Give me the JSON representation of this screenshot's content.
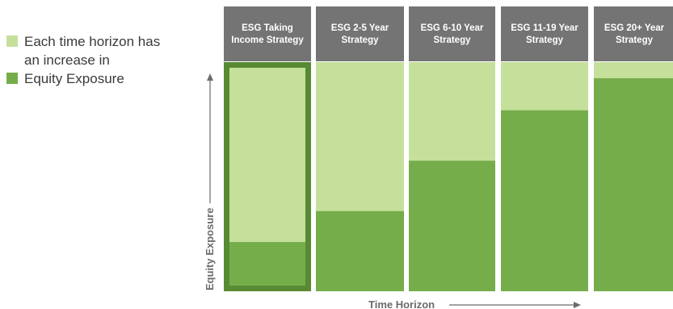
{
  "legend": {
    "items": [
      {
        "lines": [
          "Each time horizon has",
          "an increase in"
        ],
        "color": "#c5e09b"
      },
      {
        "lines": [
          "Equity Exposure"
        ],
        "color": "#76ad4b"
      }
    ]
  },
  "colors": {
    "header": "#747474",
    "header_text": "#ffffff",
    "light": "#c5e09b",
    "dark": "#76ad4b",
    "highlight_border": "#578a33",
    "axis": "#6b6b6b"
  },
  "chart_data": {
    "type": "bar",
    "stacked": true,
    "categories": [
      [
        "ESG Taking",
        "Income Strategy"
      ],
      [
        "ESG 2-5 Year",
        "Strategy"
      ],
      [
        "ESG 6-10 Year",
        "Strategy"
      ],
      [
        "ESG 11-19 Year",
        "Strategy"
      ],
      [
        "ESG 20+ Year",
        "Strategy"
      ]
    ],
    "series": [
      {
        "values": [
          20,
          35,
          57,
          79,
          93
        ]
      },
      {
        "values": [
          80,
          65,
          43,
          21,
          7
        ]
      }
    ],
    "highlight_index": 0,
    "ylim": [
      0,
      100
    ],
    "xlabel": "Time Horizon",
    "ylabel": "Equity Exposure"
  }
}
